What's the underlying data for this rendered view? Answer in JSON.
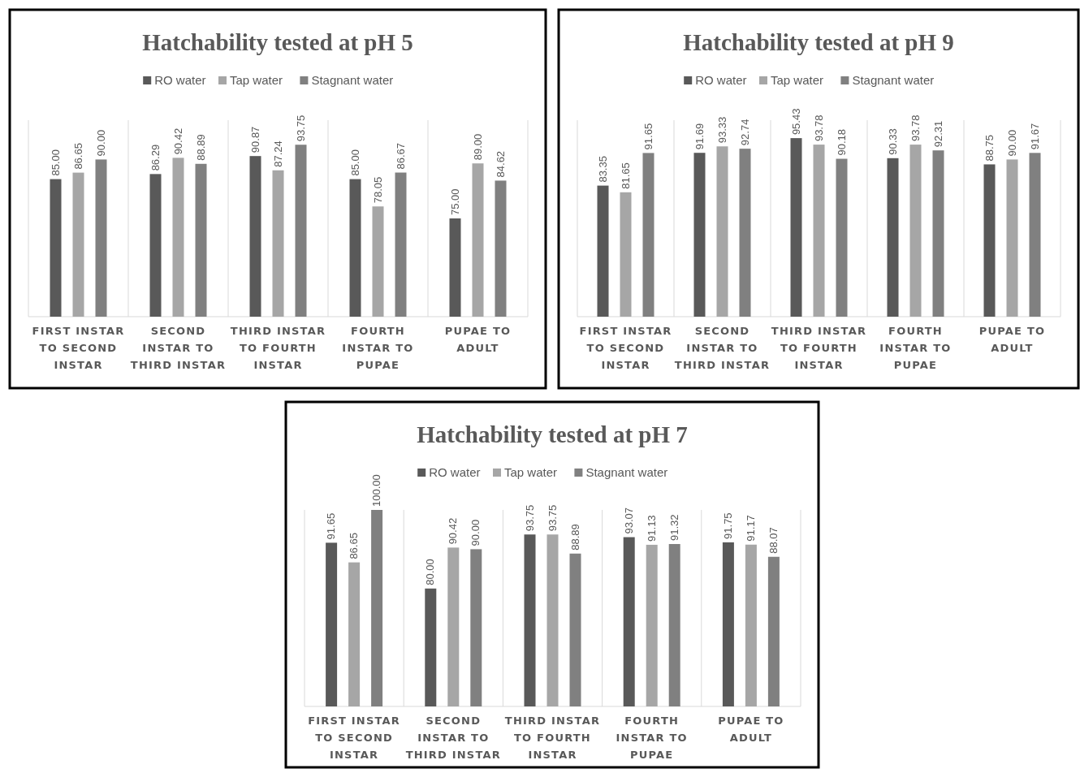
{
  "chart_data": [
    {
      "type": "bar",
      "title": "Hatchability tested at pH 5",
      "categories": [
        "FIRST INSTAR TO SECOND INSTAR",
        "SECOND INSTAR TO THIRD INSTAR",
        "THIRD INSTAR TO FOURTH INSTAR",
        "FOURTH INSTAR TO PUPAE",
        "PUPAE TO ADULT"
      ],
      "ylim": [
        50,
        100
      ],
      "grid": "x",
      "legend": "top",
      "series": [
        {
          "name": "RO water",
          "color": "#595959",
          "values": [
            85.0,
            86.29,
            90.87,
            85.0,
            75.0
          ],
          "value_labels": [
            "85.00",
            "86.29",
            "90.87",
            "85.00",
            "75.00"
          ]
        },
        {
          "name": "Tap water",
          "color": "#a6a6a6",
          "values": [
            86.65,
            90.42,
            87.24,
            78.05,
            89.0
          ],
          "value_labels": [
            "86.65",
            "90.42",
            "87.24",
            "78.05",
            "89.00"
          ]
        },
        {
          "name": "Stagnant water",
          "color": "#808080",
          "values": [
            90.0,
            88.89,
            93.75,
            86.67,
            84.62
          ],
          "value_labels": [
            "90.00",
            "88.89",
            "93.75",
            "86.67",
            "84.62"
          ]
        }
      ]
    },
    {
      "type": "bar",
      "title": "Hatchability tested at pH 9",
      "categories": [
        "FIRST INSTAR TO SECOND INSTAR",
        "SECOND INSTAR TO THIRD INSTAR",
        "THIRD INSTAR TO FOURTH INSTAR",
        "FOURTH INSTAR TO PUPAE",
        "PUPAE TO ADULT"
      ],
      "ylim": [
        50,
        100
      ],
      "grid": "x",
      "legend": "top",
      "series": [
        {
          "name": "RO water",
          "color": "#595959",
          "values": [
            83.35,
            91.69,
            95.43,
            90.33,
            88.75
          ],
          "value_labels": [
            "83.35",
            "91.69",
            "95.43",
            "90.33",
            "88.75"
          ]
        },
        {
          "name": "Tap water",
          "color": "#a6a6a6",
          "values": [
            81.65,
            93.33,
            93.78,
            93.78,
            90.0
          ],
          "value_labels": [
            "81.65",
            "93.33",
            "93.78",
            "93.78",
            "90.00"
          ]
        },
        {
          "name": "Stagnant water",
          "color": "#808080",
          "values": [
            91.65,
            92.74,
            90.18,
            92.31,
            91.67
          ],
          "value_labels": [
            "91.65",
            "92.74",
            "90.18",
            "92.31",
            "91.67"
          ]
        }
      ]
    },
    {
      "type": "bar",
      "title": "Hatchability tested at pH 7",
      "categories": [
        "FIRST INSTAR TO SECOND INSTAR",
        "SECOND INSTAR TO THIRD INSTAR",
        "THIRD INSTAR TO FOURTH INSTAR",
        "FOURTH INSTAR TO PUPAE",
        "PUPAE TO ADULT"
      ],
      "ylim": [
        50,
        100
      ],
      "grid": "x",
      "legend": "top",
      "series": [
        {
          "name": "RO water",
          "color": "#595959",
          "values": [
            91.65,
            80.0,
            93.75,
            93.07,
            91.75
          ],
          "value_labels": [
            "91.65",
            "80.00",
            "93.75",
            "93.07",
            "91.75"
          ]
        },
        {
          "name": "Tap water",
          "color": "#a6a6a6",
          "values": [
            86.65,
            90.42,
            93.75,
            91.13,
            91.17
          ],
          "value_labels": [
            "86.65",
            "90.42",
            "93.75",
            "91.13",
            "91.17"
          ]
        },
        {
          "name": "Stagnant water",
          "color": "#808080",
          "values": [
            100.0,
            90.0,
            88.89,
            91.32,
            88.07
          ],
          "value_labels": [
            "100.00",
            "90.00",
            "88.89",
            "91.32",
            "88.07"
          ]
        }
      ]
    }
  ]
}
